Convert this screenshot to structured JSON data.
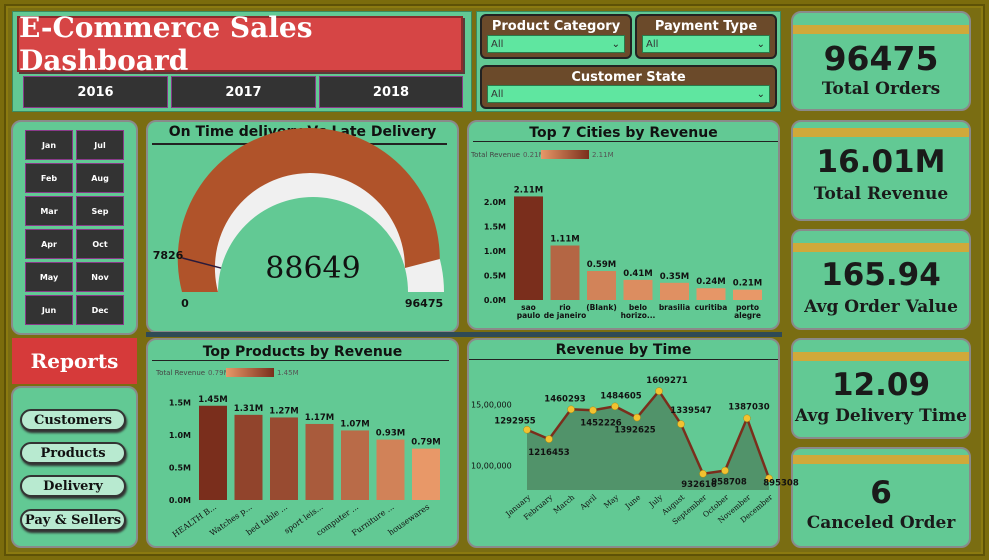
{
  "title": "E-Commerce Sales Dashboard",
  "years": [
    "2016",
    "2017",
    "2018"
  ],
  "filters": {
    "product_category": {
      "label": "Product Category",
      "value": "All"
    },
    "payment_type": {
      "label": "Payment Type",
      "value": "All"
    },
    "customer_state": {
      "label": "Customer State",
      "value": "All"
    }
  },
  "months": [
    "Jan",
    "Jul",
    "Feb",
    "Aug",
    "Mar",
    "Sep",
    "Apr",
    "Oct",
    "May",
    "Nov",
    "Jun",
    "Dec"
  ],
  "reports_label": "Reports",
  "nav": [
    "Customers",
    "Products",
    "Delivery",
    "Pay & Sellers"
  ],
  "kpis": [
    {
      "value": "96475",
      "label": "Total Orders"
    },
    {
      "value": "16.01M",
      "label": "Total Revenue"
    },
    {
      "value": "165.94",
      "label": "Avg Order Value"
    },
    {
      "value": "12.09",
      "label": "Avg Delivery Time"
    },
    {
      "value": "6",
      "label": "Canceled Order"
    }
  ],
  "gauge": {
    "title": "On Time delivery Vs Late Delivery",
    "value": "88649",
    "min": "0",
    "max": "96475",
    "late_label": "7826",
    "value_num": 88649,
    "max_num": 96475,
    "late_num": 7826,
    "fill_color": "#b0532a"
  },
  "chart_data": [
    {
      "type": "bar",
      "title": "Top 7 Cities by Revenue",
      "legend": {
        "label": "Total Revenue",
        "min": "0.21M",
        "max": "2.11M"
      },
      "categories": [
        "sao paulo",
        "rio de janeiro",
        "(Blank)",
        "belo horizo...",
        "brasilia",
        "curitiba",
        "porto alegre"
      ],
      "values": [
        2.11,
        1.11,
        0.59,
        0.41,
        0.35,
        0.24,
        0.21
      ],
      "labels": [
        "2.11M",
        "1.11M",
        "0.59M",
        "0.41M",
        "0.35M",
        "0.24M",
        "0.21M"
      ],
      "yticks": [
        "0.0M",
        "0.5M",
        "1.0M",
        "1.5M",
        "2.0M"
      ],
      "ylim": [
        0,
        2.2
      ]
    },
    {
      "type": "bar",
      "title": "Top Products by Revenue",
      "legend": {
        "label": "Total Revenue",
        "min": "0.79M",
        "max": "1.45M"
      },
      "categories": [
        "HEALTH B...",
        "Watches p...",
        "bed table ...",
        "sport leis...",
        "computer ...",
        "Furniture ...",
        "housewares"
      ],
      "values": [
        1.45,
        1.31,
        1.27,
        1.17,
        1.07,
        0.93,
        0.79
      ],
      "labels": [
        "1.45M",
        "1.31M",
        "1.27M",
        "1.17M",
        "1.07M",
        "0.93M",
        "0.79M"
      ],
      "yticks": [
        "0.0M",
        "0.5M",
        "1.0M",
        "1.5M"
      ],
      "ylim": [
        0,
        1.6
      ]
    },
    {
      "type": "area",
      "title": "Revenue by Time",
      "categories": [
        "January",
        "February",
        "March",
        "April",
        "May",
        "June",
        "July",
        "August",
        "September",
        "October",
        "November",
        "December"
      ],
      "values": [
        1292955,
        1216453,
        1460293,
        1452226,
        1484605,
        1392625,
        1609271,
        1339547,
        932616,
        958708,
        1387030,
        895308
      ],
      "labels": [
        "1292955",
        "1216453",
        "1460293",
        "1452226",
        "1484605",
        "1392625",
        "1609271",
        "1339547",
        "932616",
        "958708",
        "1387030",
        "895308"
      ],
      "yticks": [
        "10,00,000",
        "15,00,000"
      ],
      "ylim": [
        800000,
        1700000
      ]
    }
  ]
}
